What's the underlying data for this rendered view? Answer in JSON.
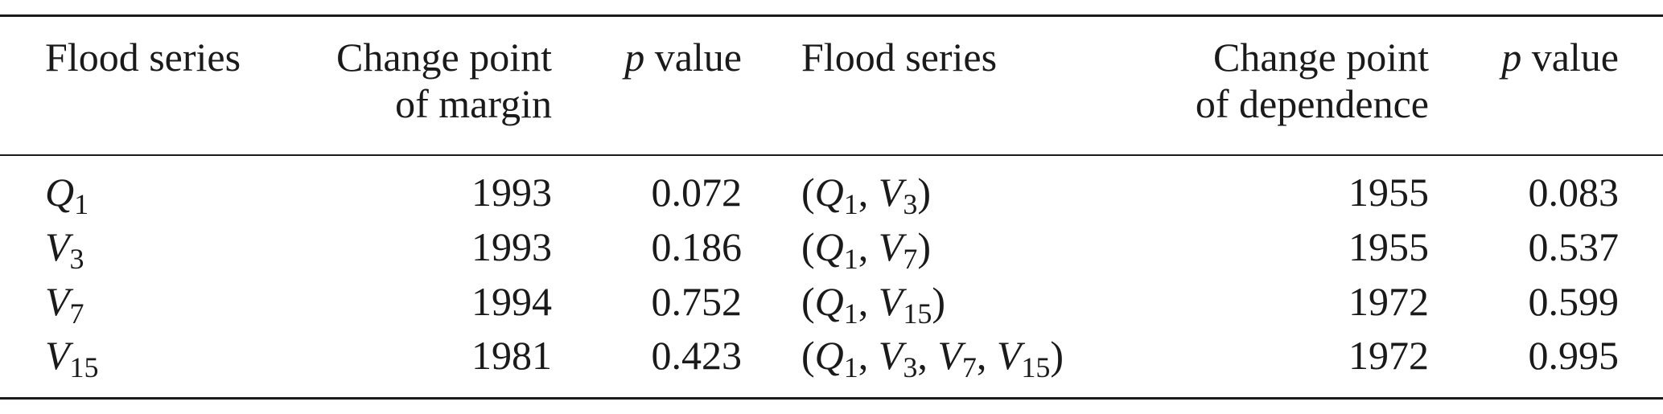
{
  "header": {
    "col1": "Flood series",
    "col2_line1": "Change point",
    "col2_line2": "of margin",
    "col3_p": "p",
    "col3_rest": " value",
    "col4": "Flood series",
    "col5_line1": "Change point",
    "col5_line2": "of dependence",
    "col6_p": "p",
    "col6_rest": " value"
  },
  "rows": [
    {
      "series_var": "Q",
      "series_sub": "1",
      "margin_cp": "1993",
      "margin_p": "0.072",
      "pair": [
        {
          "v": "Q",
          "s": "1"
        },
        {
          "v": "V",
          "s": "3"
        }
      ],
      "dep_cp": "1955",
      "dep_p": "0.083"
    },
    {
      "series_var": "V",
      "series_sub": "3",
      "margin_cp": "1993",
      "margin_p": "0.186",
      "pair": [
        {
          "v": "Q",
          "s": "1"
        },
        {
          "v": "V",
          "s": "7"
        }
      ],
      "dep_cp": "1955",
      "dep_p": "0.537"
    },
    {
      "series_var": "V",
      "series_sub": "7",
      "margin_cp": "1994",
      "margin_p": "0.752",
      "pair": [
        {
          "v": "Q",
          "s": "1"
        },
        {
          "v": "V",
          "s": "15"
        }
      ],
      "dep_cp": "1972",
      "dep_p": "0.599"
    },
    {
      "series_var": "V",
      "series_sub": "15",
      "margin_cp": "1981",
      "margin_p": "0.423",
      "pair": [
        {
          "v": "Q",
          "s": "1"
        },
        {
          "v": "V",
          "s": "3"
        },
        {
          "v": "V",
          "s": "7"
        },
        {
          "v": "V",
          "s": "15"
        }
      ],
      "dep_cp": "1972",
      "dep_p": "0.995"
    }
  ]
}
